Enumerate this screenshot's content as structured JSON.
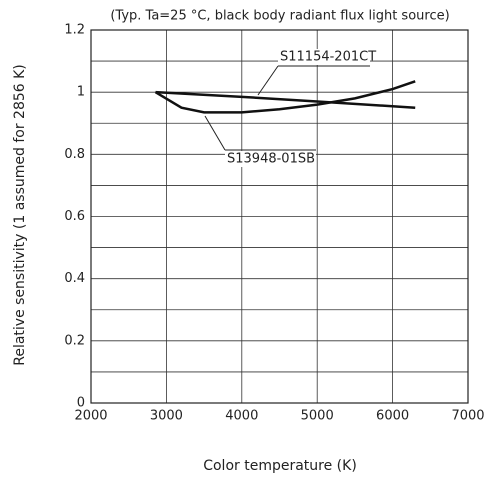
{
  "chart_data": {
    "type": "line",
    "subtitle": "(Typ. Ta=25 °C, black body radiant flux light source)",
    "x_label": "Color temperature (K)",
    "y_label": "Relative sensitivity (1 assumed for 2856 K)",
    "xlim": [
      2000,
      7000
    ],
    "xticks": [
      2000,
      3000,
      4000,
      5000,
      6000,
      7000
    ],
    "ylim": [
      0,
      1.2
    ],
    "yticks": [
      0,
      0.2,
      0.4,
      0.6,
      0.8,
      1,
      1.2
    ],
    "yminor": [
      0.1,
      0.3,
      0.5,
      0.7,
      0.9,
      1.1
    ],
    "grid": true,
    "series": [
      {
        "name": "S11154-201CT",
        "color": "#111111",
        "x": [
          2856,
          4000,
          5000,
          6300
        ],
        "values": [
          1.0,
          0.985,
          0.97,
          0.95
        ]
      },
      {
        "name": "S13948-01SB",
        "color": "#111111",
        "x": [
          2856,
          3200,
          3500,
          4000,
          4500,
          5000,
          5500,
          6000,
          6300
        ],
        "values": [
          1.0,
          0.95,
          0.935,
          0.935,
          0.945,
          0.96,
          0.98,
          1.01,
          1.035
        ]
      }
    ]
  }
}
